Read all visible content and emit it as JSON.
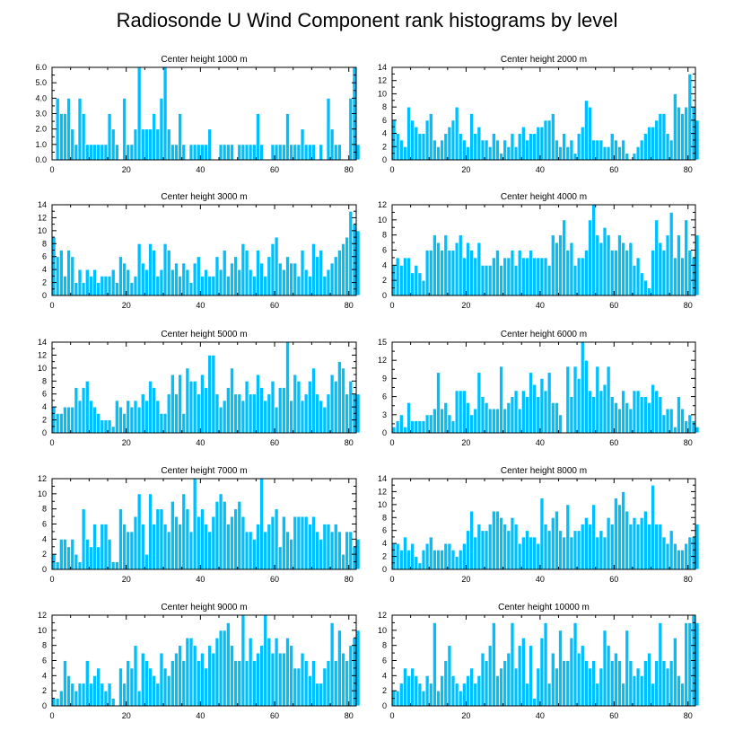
{
  "title": "Radiosonde U Wind Component rank histograms by level",
  "colors": {
    "bar": "#00bfff",
    "bar_edge": "#ffffff",
    "axis": "#000000"
  },
  "chart_data": [
    {
      "type": "bar",
      "title": "Center height 1000 m",
      "x_start": 0,
      "ylim": [
        0,
        6
      ],
      "xlim": [
        0,
        82
      ],
      "xticks": [
        "0",
        "20",
        "40",
        "60",
        "80"
      ],
      "yticks": [
        "0.0",
        "1.0",
        "2.0",
        "3.0",
        "4.0",
        "5.0",
        "6.0"
      ],
      "values": [
        0,
        4,
        3,
        3,
        4,
        2,
        1,
        4,
        3,
        1,
        1,
        1,
        1,
        1,
        1,
        3,
        2,
        1,
        0,
        4,
        1,
        1,
        2,
        6,
        2,
        2,
        2,
        3,
        2,
        4,
        6,
        2,
        1,
        1,
        3,
        1,
        0,
        1,
        1,
        1,
        1,
        1,
        2,
        0,
        0,
        1,
        1,
        1,
        1,
        0,
        1,
        1,
        1,
        1,
        1,
        3,
        1,
        0,
        0,
        1,
        1,
        1,
        1,
        3,
        1,
        1,
        1,
        2,
        1,
        1,
        1,
        0,
        1,
        0,
        4,
        2,
        1,
        1,
        0,
        0,
        4,
        6,
        1
      ]
    },
    {
      "type": "bar",
      "title": "Center height 2000 m",
      "x_start": 0,
      "ylim": [
        0,
        14
      ],
      "xlim": [
        0,
        82
      ],
      "xticks": [
        "0",
        "20",
        "40",
        "60",
        "80"
      ],
      "yticks": [
        "0",
        "2",
        "4",
        "6",
        "8",
        "10",
        "12",
        "14"
      ],
      "values": [
        6,
        4,
        3,
        2,
        8,
        6,
        5,
        4,
        4,
        6,
        7,
        3,
        2,
        3,
        4,
        5,
        6,
        8,
        4,
        3,
        2,
        7,
        4,
        5,
        3,
        3,
        2,
        4,
        3,
        1,
        3,
        2,
        4,
        2,
        4,
        5,
        3,
        4,
        4,
        5,
        5,
        6,
        6,
        7,
        3,
        2,
        4,
        2,
        3,
        1,
        4,
        5,
        9,
        8,
        3,
        3,
        3,
        2,
        2,
        4,
        3,
        2,
        3,
        1,
        0,
        1,
        2,
        3,
        4,
        5,
        5,
        6,
        7,
        7,
        4,
        3,
        10,
        8,
        7,
        8,
        13,
        8,
        6
      ]
    },
    {
      "type": "bar",
      "title": "Center height 3000 m",
      "x_start": 0,
      "ylim": [
        0,
        14
      ],
      "xlim": [
        0,
        82
      ],
      "xticks": [
        "0",
        "20",
        "40",
        "60",
        "80"
      ],
      "yticks": [
        "0",
        "2",
        "4",
        "6",
        "8",
        "10",
        "12",
        "14"
      ],
      "values": [
        9,
        6,
        7,
        3,
        7,
        6,
        2,
        4,
        2,
        4,
        3,
        4,
        2,
        3,
        3,
        3,
        4,
        2,
        6,
        5,
        4,
        2,
        3,
        8,
        5,
        4,
        8,
        7,
        3,
        4,
        8,
        7,
        4,
        5,
        3,
        5,
        4,
        2,
        5,
        6,
        3,
        4,
        3,
        3,
        6,
        4,
        7,
        3,
        5,
        6,
        4,
        8,
        7,
        4,
        3,
        7,
        5,
        3,
        6,
        8,
        9,
        5,
        4,
        6,
        5,
        5,
        3,
        7,
        4,
        3,
        8,
        6,
        7,
        3,
        4,
        5,
        6,
        7,
        8,
        9,
        13,
        11,
        10
      ]
    },
    {
      "type": "bar",
      "title": "Center height 4000 m",
      "x_start": 0,
      "ylim": [
        0,
        12
      ],
      "xlim": [
        0,
        82
      ],
      "xticks": [
        "0",
        "20",
        "40",
        "60",
        "80"
      ],
      "yticks": [
        "0",
        "2",
        "4",
        "6",
        "8",
        "10",
        "12"
      ],
      "values": [
        4,
        5,
        4,
        5,
        5,
        3,
        4,
        3,
        2,
        6,
        6,
        8,
        7,
        6,
        8,
        6,
        6,
        7,
        8,
        5,
        7,
        6,
        5,
        7,
        4,
        4,
        4,
        5,
        6,
        4,
        5,
        5,
        6,
        4,
        6,
        5,
        5,
        6,
        5,
        5,
        5,
        5,
        4,
        8,
        7,
        8,
        10,
        6,
        7,
        4,
        5,
        5,
        6,
        10,
        12,
        8,
        7,
        9,
        8,
        6,
        6,
        8,
        7,
        6,
        7,
        4,
        5,
        3,
        2,
        1,
        6,
        10,
        7,
        6,
        8,
        11,
        5,
        8,
        5,
        10,
        6,
        5,
        8
      ]
    },
    {
      "type": "bar",
      "title": "Center height 5000 m",
      "x_start": 0,
      "ylim": [
        0,
        14
      ],
      "xlim": [
        0,
        82
      ],
      "xticks": [
        "0",
        "20",
        "40",
        "60",
        "80"
      ],
      "yticks": [
        "0",
        "2",
        "4",
        "6",
        "8",
        "10",
        "12",
        "14"
      ],
      "values": [
        4,
        3,
        3,
        4,
        4,
        4,
        7,
        5,
        7,
        8,
        5,
        4,
        3,
        2,
        2,
        2,
        1,
        5,
        4,
        3,
        5,
        4,
        5,
        4,
        6,
        5,
        8,
        7,
        5,
        3,
        3,
        6,
        9,
        6,
        9,
        3,
        10,
        8,
        8,
        6,
        9,
        7,
        12,
        12,
        6,
        4,
        5,
        7,
        10,
        6,
        6,
        5,
        8,
        6,
        6,
        9,
        7,
        5,
        6,
        8,
        4,
        7,
        7,
        14,
        5,
        9,
        8,
        5,
        6,
        8,
        10,
        6,
        5,
        4,
        6,
        9,
        8,
        11,
        10,
        6,
        8,
        6,
        6
      ]
    },
    {
      "type": "bar",
      "title": "Center height 6000 m",
      "x_start": 0,
      "ylim": [
        0,
        15
      ],
      "xlim": [
        0,
        82
      ],
      "xticks": [
        "0",
        "20",
        "40",
        "60",
        "80"
      ],
      "yticks": [
        "0",
        "3",
        "6",
        "9",
        "12",
        "15"
      ],
      "values": [
        1,
        2,
        3,
        1,
        5,
        2,
        2,
        2,
        2,
        3,
        3,
        4,
        10,
        4,
        5,
        3,
        2,
        7,
        7,
        7,
        5,
        3,
        4,
        10,
        6,
        5,
        4,
        4,
        4,
        11,
        4,
        5,
        6,
        7,
        4,
        7,
        6,
        10,
        8,
        6,
        9,
        7,
        10,
        5,
        5,
        3,
        0,
        11,
        6,
        11,
        9,
        15,
        12,
        7,
        6,
        11,
        7,
        8,
        11,
        6,
        5,
        4,
        7,
        5,
        4,
        7,
        7,
        6,
        6,
        5,
        8,
        7,
        6,
        3,
        4,
        4,
        1,
        6,
        4,
        2,
        3,
        2,
        1
      ]
    },
    {
      "type": "bar",
      "title": "Center height 7000 m",
      "x_start": 0,
      "ylim": [
        0,
        12
      ],
      "xlim": [
        0,
        82
      ],
      "xticks": [
        "0",
        "20",
        "40",
        "60",
        "80"
      ],
      "yticks": [
        "0",
        "2",
        "4",
        "6",
        "8",
        "10",
        "12"
      ],
      "values": [
        2,
        1,
        4,
        4,
        3,
        4,
        2,
        1,
        8,
        4,
        3,
        6,
        3,
        6,
        6,
        4,
        1,
        1,
        8,
        6,
        5,
        5,
        7,
        10,
        6,
        2,
        10,
        6,
        8,
        8,
        6,
        5,
        9,
        7,
        6,
        10,
        8,
        5,
        12,
        7,
        8,
        6,
        5,
        7,
        9,
        10,
        9,
        6,
        7,
        8,
        9,
        7,
        5,
        5,
        4,
        6,
        12,
        5,
        6,
        7,
        8,
        3,
        7,
        5,
        4,
        7,
        7,
        7,
        7,
        6,
        7,
        5,
        4,
        6,
        6,
        5,
        6,
        5,
        2,
        5,
        5,
        3,
        4
      ]
    },
    {
      "type": "bar",
      "title": "Center height 8000 m",
      "x_start": 0,
      "ylim": [
        0,
        14
      ],
      "xlim": [
        0,
        82
      ],
      "xticks": [
        "0",
        "20",
        "40",
        "60",
        "80"
      ],
      "yticks": [
        "0",
        "2",
        "4",
        "6",
        "8",
        "10",
        "12",
        "14"
      ],
      "values": [
        4,
        4,
        3,
        5,
        3,
        4,
        2,
        1,
        3,
        4,
        5,
        3,
        3,
        3,
        4,
        4,
        3,
        2,
        3,
        4,
        6,
        9,
        5,
        7,
        6,
        6,
        7,
        9,
        9,
        8,
        7,
        6,
        8,
        7,
        4,
        5,
        6,
        5,
        5,
        4,
        11,
        7,
        6,
        8,
        9,
        6,
        5,
        10,
        5,
        6,
        6,
        7,
        8,
        7,
        10,
        5,
        6,
        5,
        8,
        7,
        11,
        10,
        12,
        9,
        7,
        8,
        7,
        8,
        9,
        7,
        13,
        7,
        7,
        5,
        4,
        6,
        4,
        3,
        3,
        4,
        5,
        5,
        7
      ]
    },
    {
      "type": "bar",
      "title": "Center height 9000 m",
      "x_start": 0,
      "ylim": [
        0,
        12
      ],
      "xlim": [
        0,
        82
      ],
      "xticks": [
        "0",
        "20",
        "40",
        "60",
        "80"
      ],
      "yticks": [
        "0",
        "2",
        "4",
        "6",
        "8",
        "10",
        "12"
      ],
      "values": [
        1,
        1,
        2,
        6,
        4,
        3,
        2,
        3,
        3,
        6,
        3,
        4,
        5,
        3,
        2,
        3,
        1,
        0,
        5,
        3,
        6,
        5,
        8,
        2,
        7,
        6,
        5,
        4,
        3,
        7,
        5,
        4,
        6,
        7,
        8,
        6,
        9,
        9,
        8,
        6,
        7,
        5,
        8,
        7,
        9,
        10,
        10,
        11,
        8,
        6,
        6,
        12,
        6,
        9,
        6,
        7,
        8,
        12,
        9,
        7,
        9,
        7,
        7,
        9,
        8,
        5,
        5,
        7,
        6,
        4,
        6,
        3,
        3,
        5,
        6,
        11,
        6,
        10,
        7,
        6,
        8,
        9,
        10
      ]
    },
    {
      "type": "bar",
      "title": "Center height 10000 m",
      "x_start": 0,
      "ylim": [
        0,
        12
      ],
      "xlim": [
        0,
        82
      ],
      "xticks": [
        "0",
        "20",
        "40",
        "60",
        "80"
      ],
      "yticks": [
        "0",
        "2",
        "4",
        "6",
        "8",
        "10",
        "12"
      ],
      "values": [
        2,
        2,
        3,
        5,
        4,
        5,
        4,
        3,
        2,
        4,
        3,
        11,
        2,
        4,
        6,
        8,
        4,
        3,
        2,
        3,
        4,
        5,
        3,
        4,
        7,
        6,
        8,
        11,
        4,
        5,
        6,
        7,
        11,
        5,
        8,
        9,
        3,
        8,
        1,
        5,
        9,
        11,
        3,
        7,
        5,
        10,
        6,
        6,
        9,
        11,
        7,
        8,
        6,
        5,
        6,
        3,
        5,
        10,
        8,
        6,
        7,
        6,
        3,
        10,
        6,
        4,
        5,
        4,
        6,
        7,
        3,
        6,
        11,
        6,
        5,
        6,
        9,
        4,
        3,
        11,
        11,
        12,
        11
      ]
    }
  ]
}
